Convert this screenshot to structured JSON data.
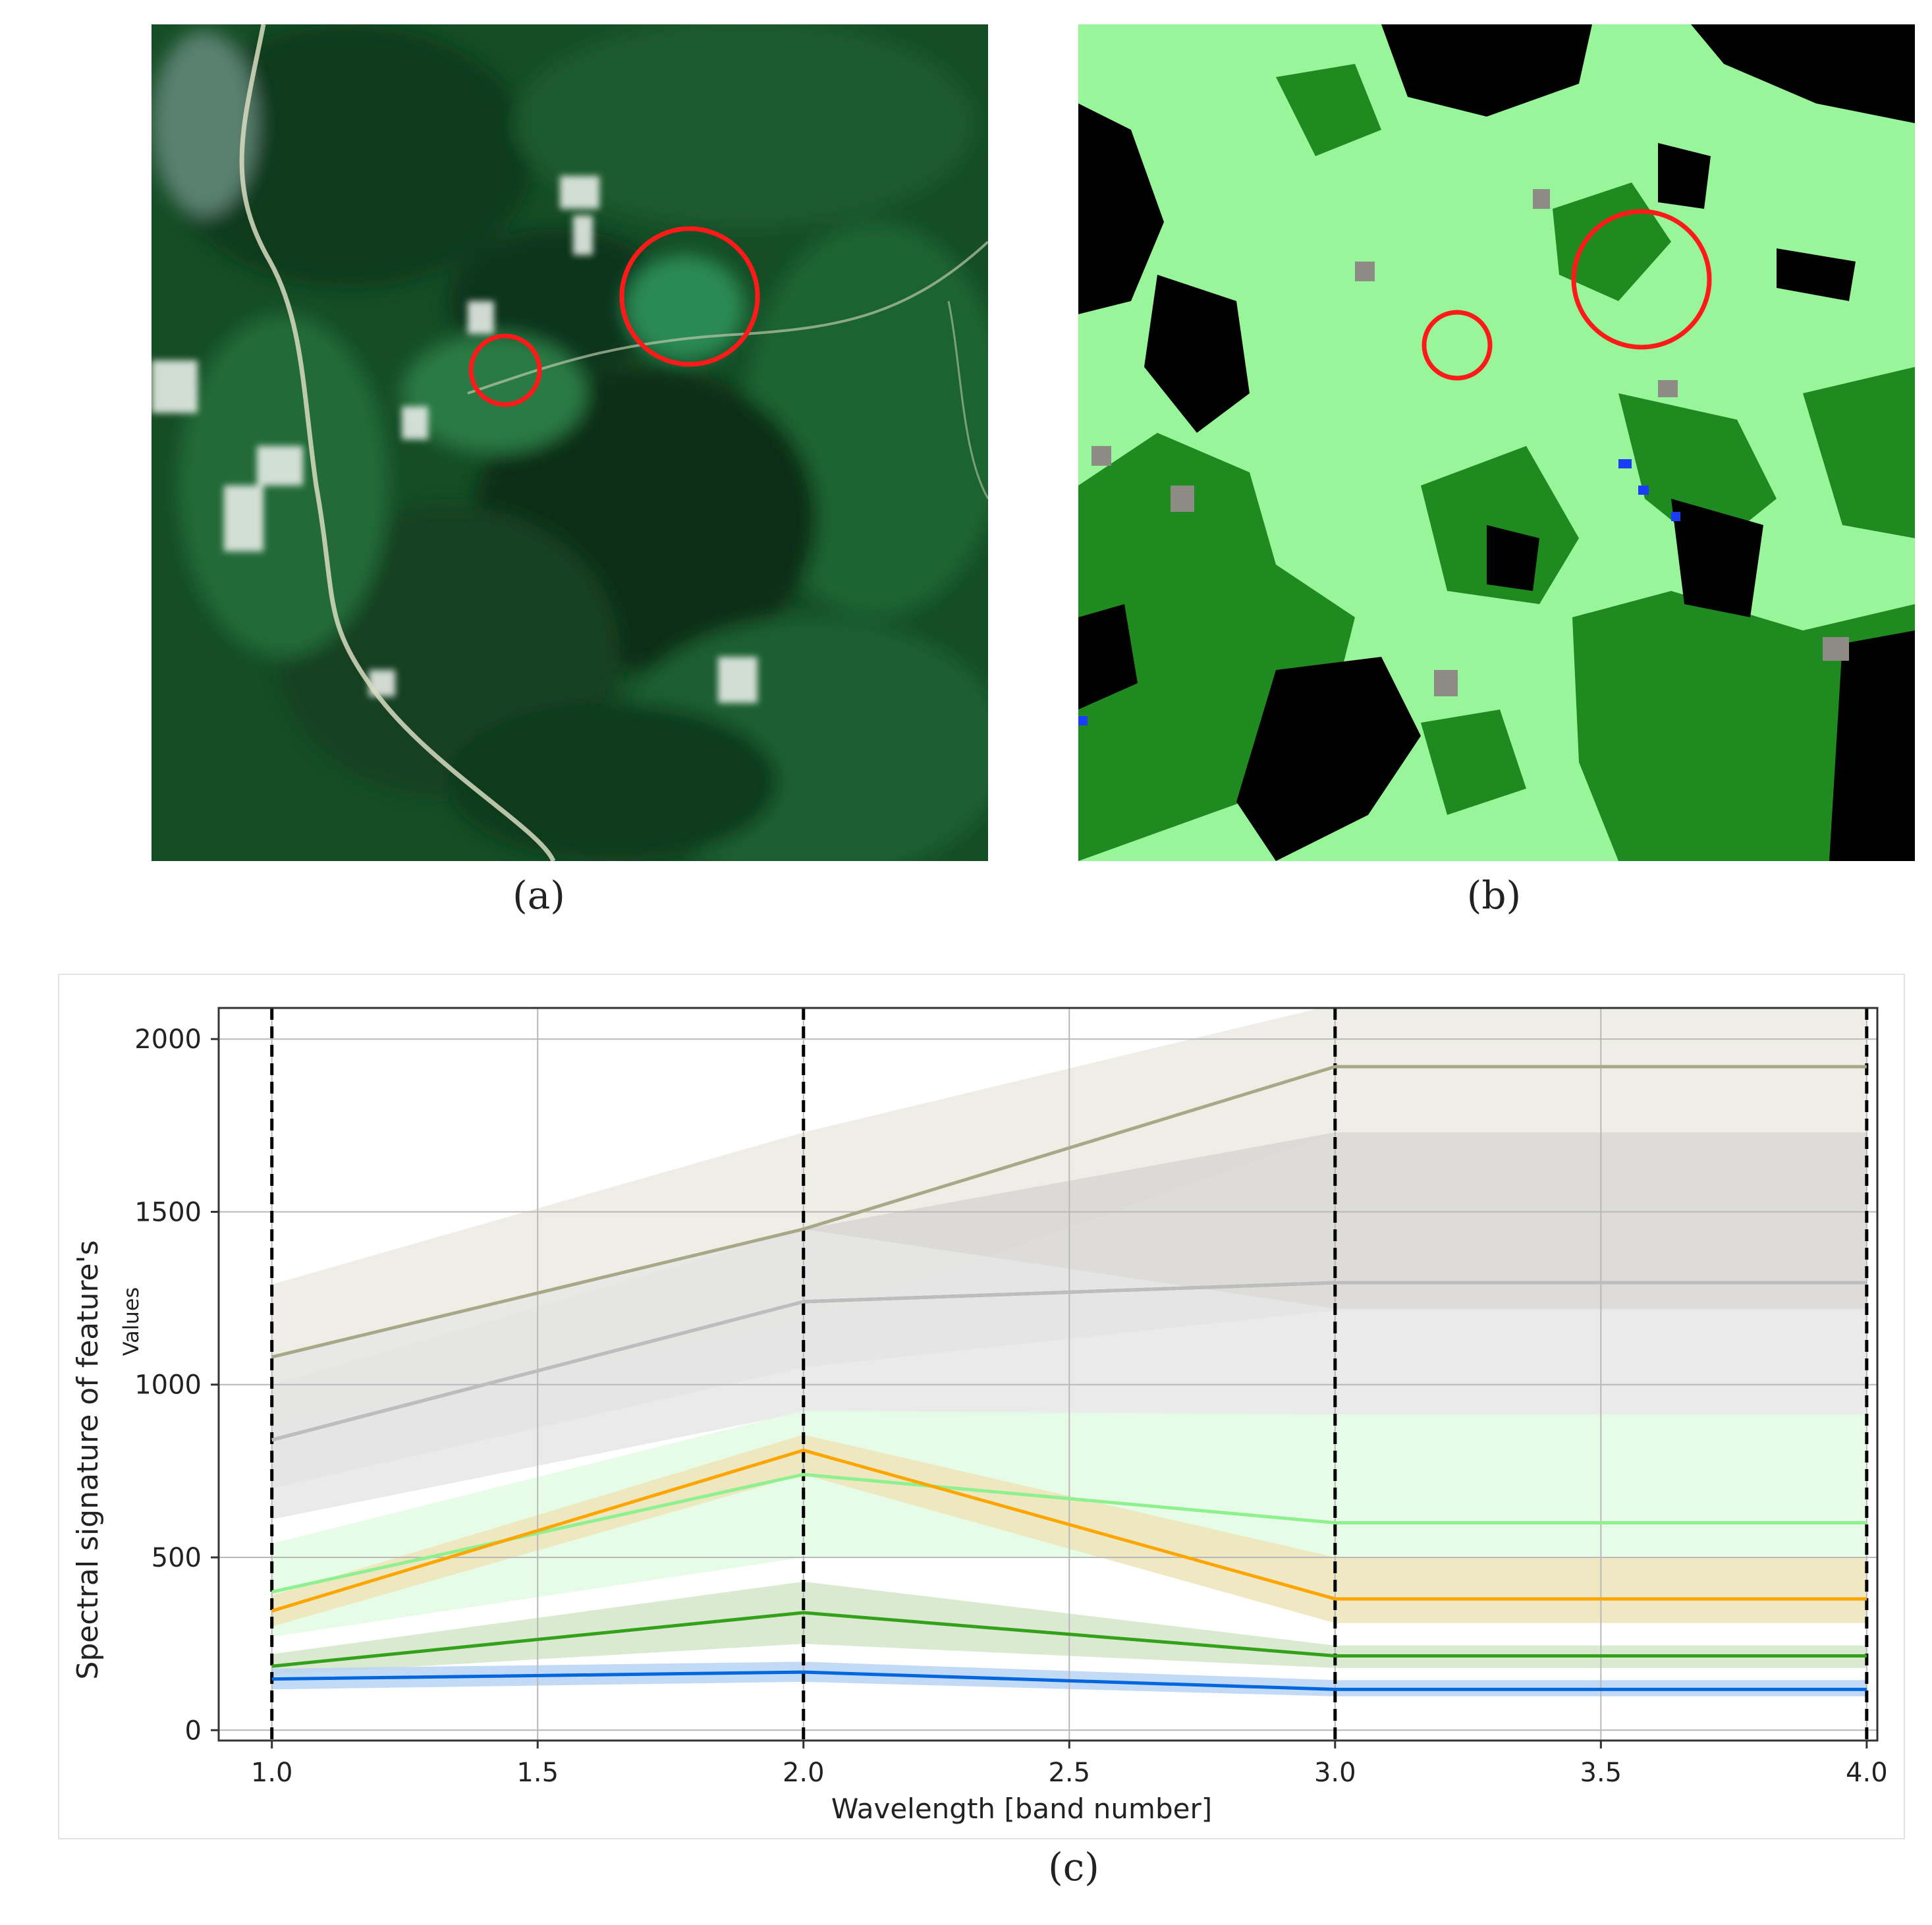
{
  "captions": {
    "a": "(a)",
    "b": "(b)",
    "c": "(c)"
  },
  "colors": {
    "satellite_dark": "#0e3a1c",
    "satellite_mid": "#1f6a34",
    "classified_light_green": "#98f59a",
    "classified_dark_green": "#1f8a1f",
    "classified_black": "#000000",
    "classified_gray": "#8e8a84",
    "classified_blue": "#1a3cff",
    "circle_red": "#ff1a1a"
  },
  "chart_data": {
    "type": "line",
    "title": "",
    "xlabel": "Wavelength [band number]",
    "ylabel": "Spectral signature of feature's",
    "ylabel_secondary": "Values",
    "xlim": [
      0.9,
      4.02
    ],
    "ylim": [
      -30,
      2090
    ],
    "xticks": [
      "1.0",
      "1.5",
      "2.0",
      "2.5",
      "3.0",
      "3.5",
      "4.0"
    ],
    "yticks": [
      "0",
      "500",
      "1000",
      "1500",
      "2000"
    ],
    "grid": true,
    "vertical_dashed_lines": [
      1.0,
      2.0,
      3.0,
      4.0
    ],
    "x": [
      1.0,
      2.0,
      3.0,
      4.0
    ],
    "series": [
      {
        "color": "#a8a888",
        "band_color": "#ecebe2",
        "values": [
          1080,
          1450,
          1920,
          1920
        ],
        "lower": [
          880,
          1180,
          1730,
          1730
        ],
        "upper": [
          1290,
          1730,
          2100,
          2100
        ]
      },
      {
        "color": "#888888",
        "band_color": "#d7d6d2",
        "values": [
          840,
          1240,
          1295,
          1295
        ],
        "lower": [
          700,
          1050,
          1215,
          1215
        ],
        "upper": [
          1000,
          1450,
          1730,
          1730
        ]
      },
      {
        "color": "#bdbdbd",
        "band_color": "#e6e6e6",
        "values": [
          840,
          1240,
          1295,
          1295
        ],
        "lower": [
          610,
          920,
          910,
          910
        ],
        "upper": [
          1080,
          1450,
          1220,
          1220
        ]
      },
      {
        "color": "#8ff08f",
        "band_color": "#e2fbe2",
        "values": [
          400,
          740,
          600,
          600
        ],
        "lower": [
          270,
          500,
          500,
          500
        ],
        "upper": [
          540,
          925,
          915,
          915
        ]
      },
      {
        "color": "#ffa500",
        "band_color": "#ede4b8",
        "values": [
          345,
          810,
          380,
          380
        ],
        "lower": [
          300,
          740,
          310,
          310
        ],
        "upper": [
          390,
          855,
          500,
          500
        ]
      },
      {
        "color": "#33a11a",
        "band_color": "#d4e6c8",
        "values": [
          185,
          340,
          215,
          215
        ],
        "lower": [
          160,
          250,
          180,
          180
        ],
        "upper": [
          220,
          430,
          245,
          245
        ]
      },
      {
        "color": "#0066dd",
        "band_color": "#b9d3f5",
        "values": [
          148,
          168,
          118,
          118
        ],
        "lower": [
          118,
          140,
          98,
          98
        ],
        "upper": [
          178,
          198,
          145,
          145
        ]
      }
    ]
  }
}
